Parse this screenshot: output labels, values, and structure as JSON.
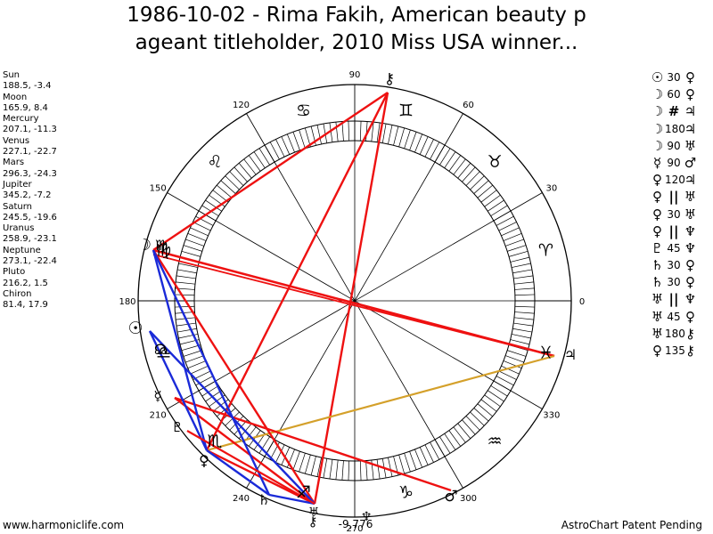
{
  "title_lines": [
    "1986-10-02 - Rima Fakih, American beauty p",
    "ageant titleholder, 2010 Miss USA winner..."
  ],
  "planets": [
    {
      "name": "Sun",
      "coords": "188.5, -3.4"
    },
    {
      "name": "Moon",
      "coords": "165.9, 8.4"
    },
    {
      "name": "Mercury",
      "coords": "207.1, -11.3"
    },
    {
      "name": "Venus",
      "coords": "227.1, -22.7"
    },
    {
      "name": "Mars",
      "coords": "296.3, -24.3"
    },
    {
      "name": "Jupiter",
      "coords": "345.2, -7.2"
    },
    {
      "name": "Saturn",
      "coords": "245.5, -19.6"
    },
    {
      "name": "Uranus",
      "coords": "258.9, -23.1"
    },
    {
      "name": "Neptune",
      "coords": "273.1, -22.4"
    },
    {
      "name": "Pluto",
      "coords": "216.2, 1.5"
    },
    {
      "name": "Chiron",
      "coords": "81.4, 17.9"
    }
  ],
  "aspects": [
    {
      "p1": "☉",
      "angle": "30",
      "p2": "♀"
    },
    {
      "p1": "☽",
      "angle": "60",
      "p2": "♀"
    },
    {
      "p1": "☽",
      "angle": "#",
      "p2": "♃"
    },
    {
      "p1": "☽",
      "angle": "180",
      "p2": "♃"
    },
    {
      "p1": "☽",
      "angle": "90",
      "p2": "♅"
    },
    {
      "p1": "☿",
      "angle": "90",
      "p2": "♂"
    },
    {
      "p1": "♀",
      "angle": "120",
      "p2": "♃"
    },
    {
      "p1": "♀",
      "angle": "||",
      "p2": "♅"
    },
    {
      "p1": "♀",
      "angle": "30",
      "p2": "♅"
    },
    {
      "p1": "♀",
      "angle": "||",
      "p2": "♆"
    },
    {
      "p1": "♇",
      "angle": "45",
      "p2": "♆"
    },
    {
      "p1": "♄",
      "angle": "30",
      "p2": "♀"
    },
    {
      "p1": "♄",
      "angle": "30",
      "p2": "♀"
    },
    {
      "p1": "♅",
      "angle": "||",
      "p2": "♆"
    },
    {
      "p1": "♅",
      "angle": "45",
      "p2": "♀"
    },
    {
      "p1": "♅",
      "angle": "180",
      "p2": "⚷"
    },
    {
      "p1": "♀",
      "angle": "135",
      "p2": "⚷"
    }
  ],
  "degree_labels": [
    "0",
    "30",
    "60",
    "90",
    "120",
    "150",
    "180",
    "210",
    "240",
    "270",
    "300",
    "330"
  ],
  "sign_glyphs": [
    "♈",
    "♉",
    "♊",
    "♋",
    "♌",
    "♍",
    "♎",
    "♏",
    "♐",
    "♑",
    "♒",
    "♓"
  ],
  "planet_glyphs": {
    "sun": "☉",
    "moon": "☽",
    "mercury": "☿",
    "venus": "♀",
    "mars": "♂",
    "jupiter": "♃",
    "saturn": "♄",
    "uranus": "♅",
    "neptune": "♆",
    "pluto": "♇",
    "chiron": "⚷"
  },
  "bottom_value": "-9,776",
  "footer_left": "www.harmoniclife.com",
  "footer_right": "AstroChart Patent Pending",
  "colors": {
    "aspect_red": "#ee1111",
    "aspect_blue": "#1a2ad8",
    "aspect_gold": "#d4a02a"
  }
}
